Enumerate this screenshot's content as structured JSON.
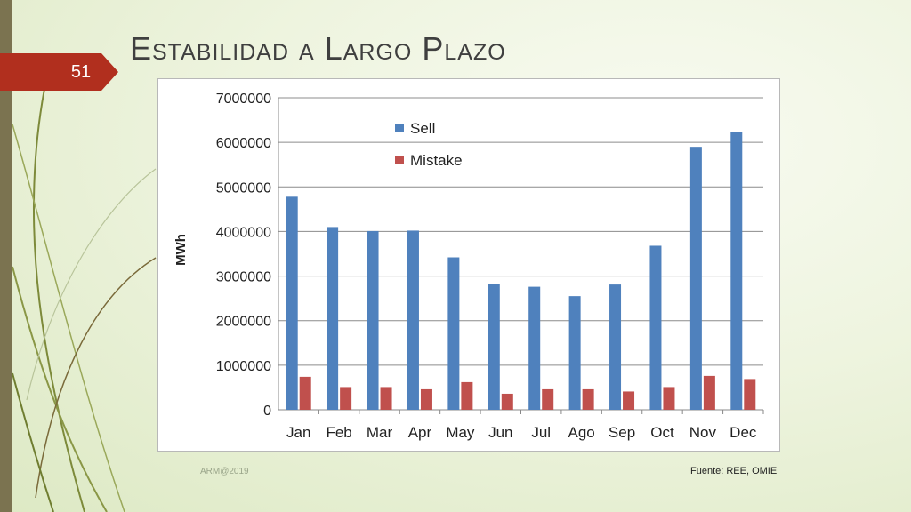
{
  "slide": {
    "number": "51",
    "title": "Estabilidad a Largo Plazo"
  },
  "footer": {
    "left": "ARM@2019",
    "right": "Fuente: REE, OMIE"
  },
  "colors": {
    "sell": "#4f81bd",
    "mistake": "#c0504d",
    "accent": "#b12f1e",
    "bar": "#7b7350"
  },
  "chart_data": {
    "type": "bar",
    "title": "",
    "xlabel": "",
    "ylabel": "MWh",
    "ylim": [
      0,
      7000000
    ],
    "yticks": [
      "0",
      "1000000",
      "2000000",
      "3000000",
      "4000000",
      "5000000",
      "6000000",
      "7000000"
    ],
    "grid": true,
    "legend_position": "top-left",
    "categories": [
      "Jan",
      "Feb",
      "Mar",
      "Apr",
      "May",
      "Jun",
      "Jul",
      "Ago",
      "Sep",
      "Oct",
      "Nov",
      "Dec"
    ],
    "series": [
      {
        "name": "Sell",
        "values": [
          4780000,
          4100000,
          4010000,
          4020000,
          3420000,
          2830000,
          2760000,
          2550000,
          2810000,
          3680000,
          5900000,
          6230000
        ]
      },
      {
        "name": "Mistake",
        "values": [
          740000,
          510000,
          510000,
          460000,
          620000,
          360000,
          460000,
          460000,
          410000,
          510000,
          760000,
          690000
        ]
      }
    ]
  }
}
